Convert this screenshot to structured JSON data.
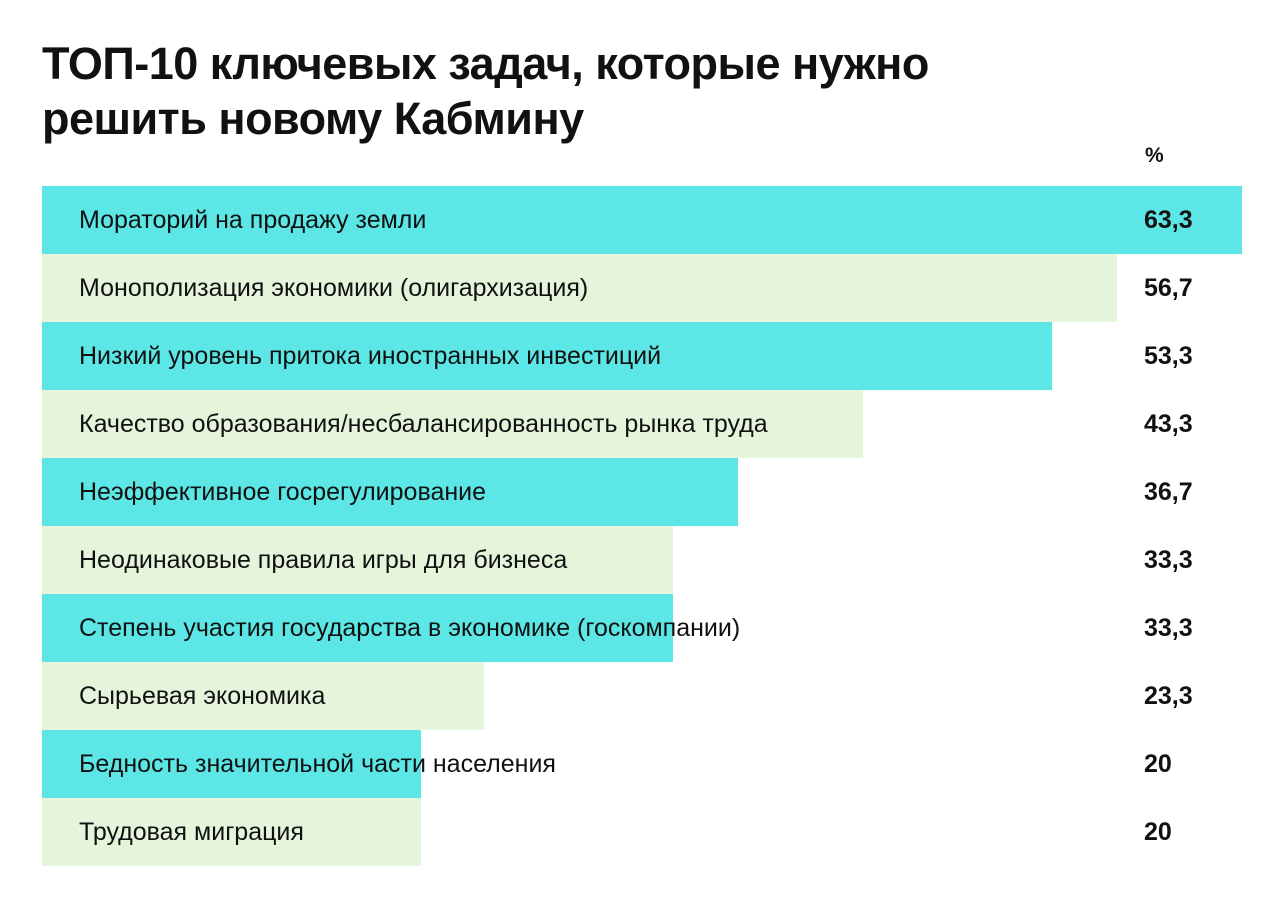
{
  "chart_data": {
    "type": "bar",
    "orientation": "horizontal",
    "title": "ТОП-10 ключевых задач, которые нужно решить новому Кабмину",
    "unit_label": "%",
    "categories": [
      "Мораторий на продажу земли",
      "Монополизация экономики (олигархизация)",
      "Низкий уровень притока иностранных инвестиций",
      "Качество образования/несбалансированность рынка труда",
      "Неэффективное госрегулирование",
      "Неодинаковые правила игры для бизнеса",
      "Степень участия государства в экономике (госкомпании)",
      "Сырьевая экономика",
      "Бедность значительной части населения",
      "Трудовая миграция"
    ],
    "values": [
      63.3,
      56.7,
      53.3,
      43.3,
      36.7,
      33.3,
      33.3,
      23.3,
      20,
      20
    ],
    "value_labels": [
      "63,3",
      "56,7",
      "53,3",
      "43,3",
      "36,7",
      "33,3",
      "33,3",
      "23,3",
      "20",
      "20"
    ],
    "xlim": [
      0,
      63.3
    ],
    "colors": {
      "bar_odd": "#5ce6e6",
      "bar_even": "#e4f5dc",
      "text": "#111111"
    },
    "grid": false,
    "legend": "none"
  }
}
